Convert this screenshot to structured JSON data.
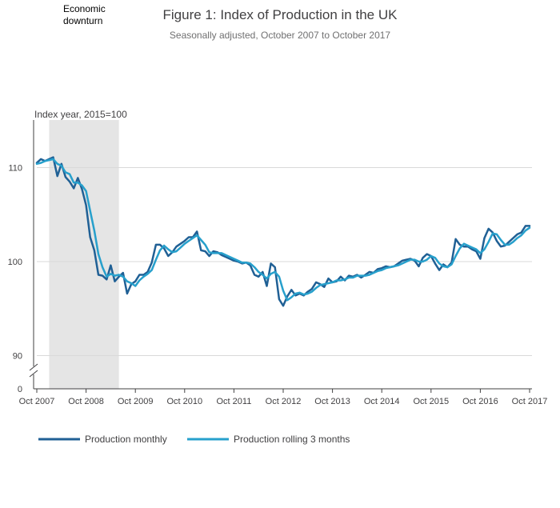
{
  "chart_data": {
    "type": "line",
    "title": "Figure 1: Index of Production in the UK",
    "subtitle": "Seasonally adjusted, October 2007 to October 2017",
    "ylabel": "Index year, 2015=100",
    "xlabel": "",
    "ylim": [
      0,
      115
    ],
    "broken_axis": {
      "below": 88,
      "zero_shown": true
    },
    "y_ticks": [
      {
        "value": 90,
        "label": "90"
      },
      {
        "value": 100,
        "label": "100"
      },
      {
        "value": 110,
        "label": "110"
      }
    ],
    "y_zero_label": "0",
    "x_ticks": [
      {
        "index": 0,
        "label": "Oct 2007"
      },
      {
        "index": 12,
        "label": "Oct 2008"
      },
      {
        "index": 24,
        "label": "Oct 2009"
      },
      {
        "index": 36,
        "label": "Oct 2010"
      },
      {
        "index": 48,
        "label": "Oct 2011"
      },
      {
        "index": 60,
        "label": "Oct 2012"
      },
      {
        "index": 72,
        "label": "Oct 2013"
      },
      {
        "index": 84,
        "label": "Oct 2014"
      },
      {
        "index": 96,
        "label": "Oct 2015"
      },
      {
        "index": 108,
        "label": "Oct 2016"
      },
      {
        "index": 120,
        "label": "Oct 2017"
      }
    ],
    "x_start": "Oct 2007",
    "x_end": "Oct 2017",
    "x_step": "month",
    "shaded_region": {
      "label_line1": "Economic",
      "label_line2": "downturn",
      "start_index": 3,
      "end_index": 20,
      "color": "#e5e5e5"
    },
    "grid": true,
    "legend_position": "bottom-left",
    "series": [
      {
        "name": "Production monthly",
        "color": "#206095",
        "values": [
          110.5,
          110.9,
          110.7,
          110.9,
          111.1,
          109.1,
          110.4,
          109.0,
          108.5,
          107.8,
          108.9,
          107.7,
          106.0,
          102.6,
          101.2,
          98.6,
          98.5,
          98.1,
          99.6,
          97.9,
          98.4,
          98.8,
          96.6,
          97.6,
          97.9,
          98.6,
          98.6,
          98.9,
          99.9,
          101.8,
          101.8,
          101.4,
          100.6,
          101.0,
          101.6,
          101.9,
          102.2,
          102.6,
          102.6,
          103.2,
          101.2,
          101.1,
          100.6,
          101.1,
          101.0,
          100.7,
          100.5,
          100.3,
          100.1,
          100.0,
          99.8,
          99.9,
          99.6,
          98.6,
          98.4,
          98.9,
          97.4,
          99.8,
          99.4,
          96.0,
          95.3,
          96.3,
          97.0,
          96.4,
          96.6,
          96.4,
          96.8,
          97.1,
          97.8,
          97.6,
          97.3,
          98.2,
          97.8,
          97.9,
          98.4,
          98.0,
          98.5,
          98.4,
          98.6,
          98.3,
          98.6,
          98.9,
          98.8,
          99.2,
          99.3,
          99.5,
          99.4,
          99.5,
          99.8,
          100.1,
          100.2,
          100.3,
          100.1,
          99.5,
          100.4,
          100.8,
          100.6,
          99.8,
          99.1,
          99.7,
          99.4,
          99.9,
          102.4,
          101.8,
          101.6,
          101.6,
          101.3,
          101.1,
          100.3,
          102.5,
          103.5,
          103.1,
          102.2,
          101.6,
          101.7,
          102.1,
          102.5,
          102.9,
          103.1,
          103.8,
          103.8
        ]
      },
      {
        "name": "Production rolling 3 months",
        "color": "#27a0cc",
        "values": [
          110.4,
          110.5,
          110.7,
          110.8,
          110.9,
          110.4,
          110.2,
          109.5,
          109.3,
          108.4,
          108.4,
          108.1,
          107.5,
          105.4,
          103.3,
          100.8,
          99.4,
          98.4,
          98.7,
          98.5,
          98.6,
          98.4,
          97.9,
          97.7,
          97.4,
          98.0,
          98.4,
          98.7,
          99.1,
          100.2,
          101.2,
          101.7,
          101.3,
          101.0,
          101.1,
          101.5,
          101.9,
          102.2,
          102.5,
          102.8,
          102.3,
          101.8,
          101.0,
          100.9,
          100.9,
          100.9,
          100.7,
          100.5,
          100.3,
          100.1,
          99.9,
          99.9,
          99.8,
          99.4,
          98.9,
          98.6,
          98.2,
          98.7,
          98.9,
          98.4,
          96.9,
          95.9,
          96.2,
          96.6,
          96.7,
          96.5,
          96.6,
          96.8,
          97.2,
          97.5,
          97.6,
          97.7,
          97.8,
          98.0,
          98.0,
          98.1,
          98.3,
          98.3,
          98.5,
          98.5,
          98.5,
          98.6,
          98.8,
          99.0,
          99.1,
          99.3,
          99.4,
          99.5,
          99.6,
          99.8,
          100.0,
          100.2,
          100.2,
          100.0,
          100.0,
          100.2,
          100.6,
          100.4,
          99.8,
          99.5,
          99.4,
          99.7,
          100.6,
          101.4,
          101.9,
          101.7,
          101.5,
          101.3,
          100.9,
          101.3,
          102.1,
          103.0,
          102.9,
          102.3,
          101.8,
          101.8,
          102.1,
          102.5,
          102.8,
          103.3,
          103.6
        ]
      }
    ]
  }
}
